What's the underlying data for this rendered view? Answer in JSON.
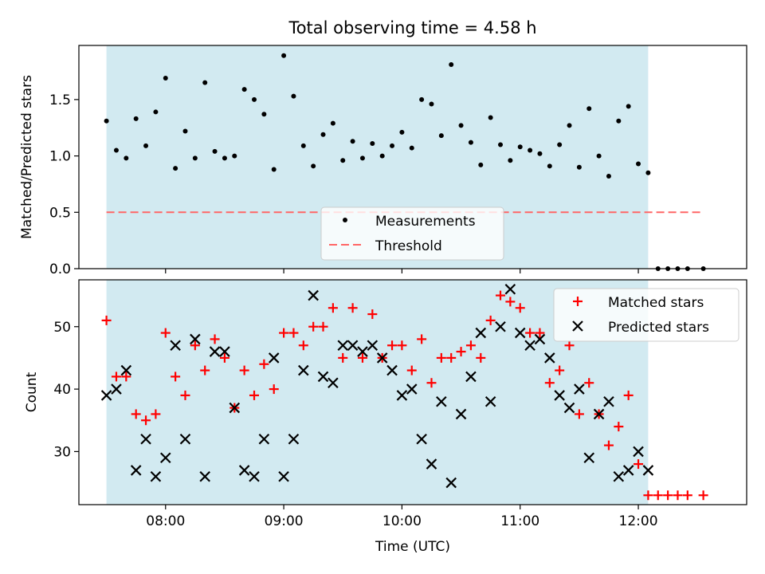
{
  "chart_data": [
    {
      "type": "scatter",
      "title": "Total observing time = 4.58 h",
      "ylabel": "Matched/Predicted stars",
      "xlabel": "",
      "xlim": [
        "07:16",
        "12:55"
      ],
      "ylim": [
        0.0,
        1.98
      ],
      "yticks": [
        "0.0",
        "0.5",
        "1.0",
        "1.5"
      ],
      "xticks": [
        "08:00",
        "09:00",
        "10:00",
        "11:00",
        "12:00"
      ],
      "shaded_region": {
        "start": "07:30",
        "end": "12:05",
        "color": "#add8e6"
      },
      "legend": {
        "position": "bottom-center",
        "entries": [
          "Measurements",
          "Threshold"
        ]
      },
      "threshold": {
        "name": "Threshold",
        "value": 0.5,
        "from": "07:30",
        "to": "12:33",
        "color": "#ff6666",
        "style": "dashed"
      },
      "series": [
        {
          "name": "Measurements",
          "marker": "dot",
          "color": "#000000",
          "points": [
            [
              "07:30",
              1.31
            ],
            [
              "07:35",
              1.05
            ],
            [
              "07:40",
              0.98
            ],
            [
              "07:45",
              1.33
            ],
            [
              "07:50",
              1.09
            ],
            [
              "07:55",
              1.39
            ],
            [
              "08:00",
              1.69
            ],
            [
              "08:05",
              0.89
            ],
            [
              "08:10",
              1.22
            ],
            [
              "08:15",
              0.98
            ],
            [
              "08:20",
              1.65
            ],
            [
              "08:25",
              1.04
            ],
            [
              "08:30",
              0.98
            ],
            [
              "08:35",
              1.0
            ],
            [
              "08:40",
              1.59
            ],
            [
              "08:45",
              1.5
            ],
            [
              "08:50",
              1.37
            ],
            [
              "08:55",
              0.88
            ],
            [
              "09:00",
              1.89
            ],
            [
              "09:05",
              1.53
            ],
            [
              "09:10",
              1.09
            ],
            [
              "09:15",
              0.91
            ],
            [
              "09:20",
              1.19
            ],
            [
              "09:25",
              1.29
            ],
            [
              "09:30",
              0.96
            ],
            [
              "09:35",
              1.13
            ],
            [
              "09:40",
              0.98
            ],
            [
              "09:45",
              1.11
            ],
            [
              "09:50",
              1.0
            ],
            [
              "09:55",
              1.09
            ],
            [
              "10:00",
              1.21
            ],
            [
              "10:05",
              1.07
            ],
            [
              "10:10",
              1.5
            ],
            [
              "10:15",
              1.46
            ],
            [
              "10:20",
              1.18
            ],
            [
              "10:25",
              1.81
            ],
            [
              "10:30",
              1.27
            ],
            [
              "10:35",
              1.12
            ],
            [
              "10:40",
              0.92
            ],
            [
              "10:45",
              1.34
            ],
            [
              "10:50",
              1.1
            ],
            [
              "10:55",
              0.96
            ],
            [
              "11:00",
              1.08
            ],
            [
              "11:05",
              1.05
            ],
            [
              "11:10",
              1.02
            ],
            [
              "11:15",
              0.91
            ],
            [
              "11:20",
              1.1
            ],
            [
              "11:25",
              1.27
            ],
            [
              "11:30",
              0.9
            ],
            [
              "11:35",
              1.42
            ],
            [
              "11:40",
              1.0
            ],
            [
              "11:45",
              0.82
            ],
            [
              "11:50",
              1.31
            ],
            [
              "11:55",
              1.44
            ],
            [
              "12:00",
              0.93
            ],
            [
              "12:05",
              0.85
            ],
            [
              "12:10",
              0.0
            ],
            [
              "12:15",
              0.0
            ],
            [
              "12:20",
              0.0
            ],
            [
              "12:25",
              0.0
            ],
            [
              "12:33",
              0.0
            ]
          ]
        }
      ]
    },
    {
      "type": "scatter",
      "title": "",
      "ylabel": "Count",
      "xlabel": "Time (UTC)",
      "xlim": [
        "07:16",
        "12:55"
      ],
      "ylim": [
        21.5,
        57.5
      ],
      "yticks": [
        "30",
        "40",
        "50"
      ],
      "xticks": [
        "08:00",
        "09:00",
        "10:00",
        "11:00",
        "12:00"
      ],
      "shaded_region": {
        "start": "07:30",
        "end": "12:05",
        "color": "#add8e6"
      },
      "legend": {
        "position": "top-right",
        "entries": [
          "Matched stars",
          "Predicted stars"
        ]
      },
      "series": [
        {
          "name": "Matched stars",
          "marker": "plus",
          "color": "#ff0000",
          "points": [
            [
              "07:30",
              51
            ],
            [
              "07:35",
              42
            ],
            [
              "07:40",
              42
            ],
            [
              "07:45",
              36
            ],
            [
              "07:50",
              35
            ],
            [
              "07:55",
              36
            ],
            [
              "08:00",
              49
            ],
            [
              "08:05",
              42
            ],
            [
              "08:10",
              39
            ],
            [
              "08:15",
              47
            ],
            [
              "08:20",
              43
            ],
            [
              "08:25",
              48
            ],
            [
              "08:30",
              45
            ],
            [
              "08:35",
              37
            ],
            [
              "08:40",
              43
            ],
            [
              "08:45",
              39
            ],
            [
              "08:50",
              44
            ],
            [
              "08:55",
              40
            ],
            [
              "09:00",
              49
            ],
            [
              "09:05",
              49
            ],
            [
              "09:10",
              47
            ],
            [
              "09:15",
              50
            ],
            [
              "09:20",
              50
            ],
            [
              "09:25",
              53
            ],
            [
              "09:30",
              45
            ],
            [
              "09:35",
              53
            ],
            [
              "09:40",
              45
            ],
            [
              "09:45",
              52
            ],
            [
              "09:50",
              45
            ],
            [
              "09:55",
              47
            ],
            [
              "10:00",
              47
            ],
            [
              "10:05",
              43
            ],
            [
              "10:10",
              48
            ],
            [
              "10:15",
              41
            ],
            [
              "10:20",
              45
            ],
            [
              "10:25",
              45
            ],
            [
              "10:30",
              46
            ],
            [
              "10:35",
              47
            ],
            [
              "10:40",
              45
            ],
            [
              "10:45",
              51
            ],
            [
              "10:50",
              55
            ],
            [
              "10:55",
              54
            ],
            [
              "11:00",
              53
            ],
            [
              "11:05",
              49
            ],
            [
              "11:10",
              49
            ],
            [
              "11:15",
              41
            ],
            [
              "11:20",
              43
            ],
            [
              "11:25",
              47
            ],
            [
              "11:30",
              36
            ],
            [
              "11:35",
              41
            ],
            [
              "11:40",
              36
            ],
            [
              "11:45",
              31
            ],
            [
              "11:50",
              34
            ],
            [
              "11:55",
              39
            ],
            [
              "12:00",
              28
            ],
            [
              "12:05",
              23
            ],
            [
              "12:10",
              23
            ],
            [
              "12:15",
              23
            ],
            [
              "12:20",
              23
            ],
            [
              "12:25",
              23
            ],
            [
              "12:33",
              23
            ]
          ]
        },
        {
          "name": "Predicted stars",
          "marker": "x",
          "color": "#000000",
          "points": [
            [
              "07:30",
              39
            ],
            [
              "07:35",
              40
            ],
            [
              "07:40",
              43
            ],
            [
              "07:45",
              27
            ],
            [
              "07:50",
              32
            ],
            [
              "07:55",
              26
            ],
            [
              "08:00",
              29
            ],
            [
              "08:05",
              47
            ],
            [
              "08:10",
              32
            ],
            [
              "08:15",
              48
            ],
            [
              "08:20",
              26
            ],
            [
              "08:25",
              46
            ],
            [
              "08:30",
              46
            ],
            [
              "08:35",
              37
            ],
            [
              "08:40",
              27
            ],
            [
              "08:45",
              26
            ],
            [
              "08:50",
              32
            ],
            [
              "08:55",
              45
            ],
            [
              "09:00",
              26
            ],
            [
              "09:05",
              32
            ],
            [
              "09:10",
              43
            ],
            [
              "09:15",
              55
            ],
            [
              "09:20",
              42
            ],
            [
              "09:25",
              41
            ],
            [
              "09:30",
              47
            ],
            [
              "09:35",
              47
            ],
            [
              "09:40",
              46
            ],
            [
              "09:45",
              47
            ],
            [
              "09:50",
              45
            ],
            [
              "09:55",
              43
            ],
            [
              "10:00",
              39
            ],
            [
              "10:05",
              40
            ],
            [
              "10:10",
              32
            ],
            [
              "10:15",
              28
            ],
            [
              "10:20",
              38
            ],
            [
              "10:25",
              25
            ],
            [
              "10:30",
              36
            ],
            [
              "10:35",
              42
            ],
            [
              "10:40",
              49
            ],
            [
              "10:45",
              38
            ],
            [
              "10:50",
              50
            ],
            [
              "10:55",
              56
            ],
            [
              "11:00",
              49
            ],
            [
              "11:05",
              47
            ],
            [
              "11:10",
              48
            ],
            [
              "11:15",
              45
            ],
            [
              "11:20",
              39
            ],
            [
              "11:25",
              37
            ],
            [
              "11:30",
              40
            ],
            [
              "11:35",
              29
            ],
            [
              "11:40",
              36
            ],
            [
              "11:45",
              38
            ],
            [
              "11:50",
              26
            ],
            [
              "11:55",
              27
            ],
            [
              "12:00",
              30
            ],
            [
              "12:05",
              27
            ]
          ]
        }
      ]
    }
  ]
}
